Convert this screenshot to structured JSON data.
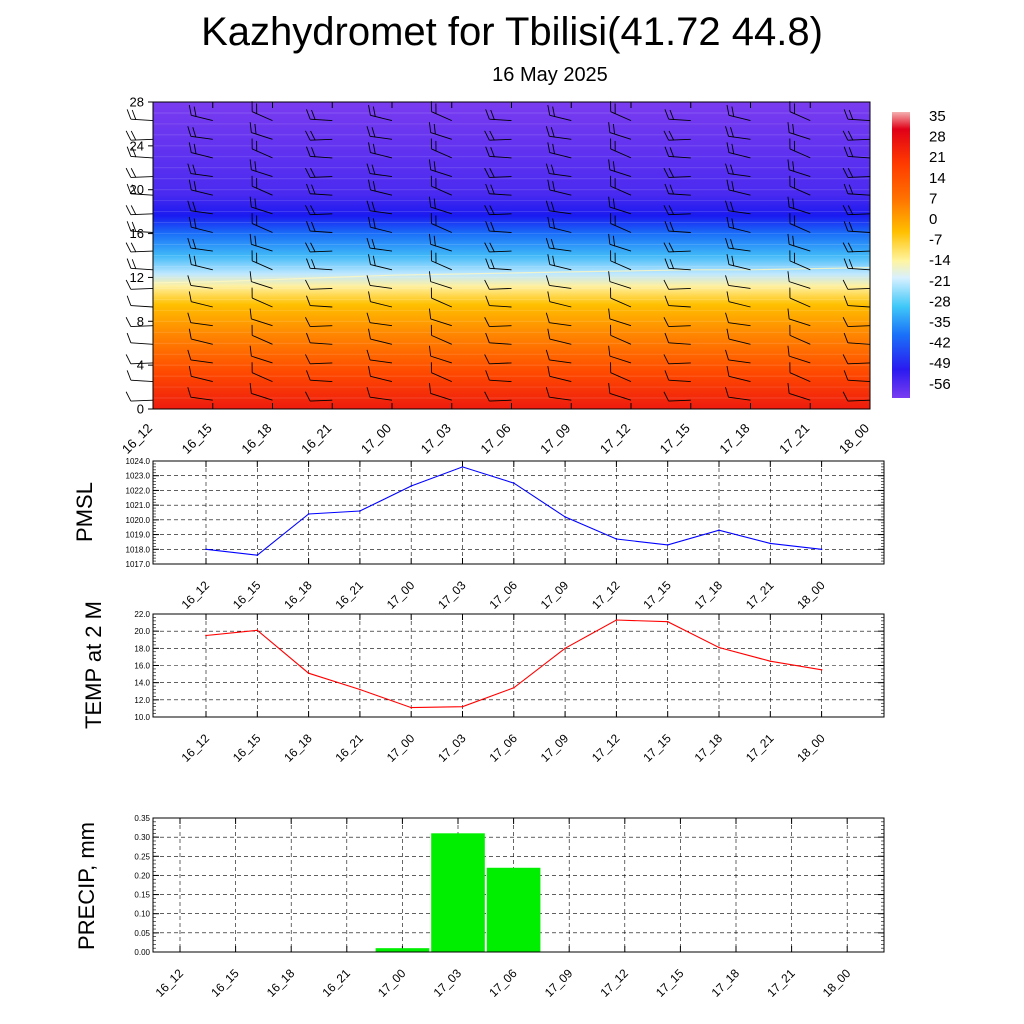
{
  "title": "Kazhydromet for Tbilisi(41.72 44.8)",
  "subtitle": "16 May 2025",
  "time_labels": [
    "16_12",
    "16_15",
    "16_18",
    "16_21",
    "17_00",
    "17_03",
    "17_06",
    "17_09",
    "17_12",
    "17_15",
    "17_18",
    "17_21",
    "18_00"
  ],
  "colors": {
    "pmsl_line": "#0000ff",
    "temp_line": "#ff0000",
    "precip_bar": "#00ee00"
  },
  "chart_data": [
    {
      "type": "heatmap",
      "x_ticks": [
        "16_12",
        "16_15",
        "16_18",
        "16_21",
        "17_00",
        "17_03",
        "17_06",
        "17_09",
        "17_12",
        "17_15",
        "17_18",
        "17_21",
        "18_00"
      ],
      "y_ticks": [
        0,
        4,
        8,
        12,
        16,
        20,
        24,
        28
      ],
      "ylim": [
        0,
        28
      ],
      "colorbar_labels": [
        "35",
        "28",
        "21",
        "14",
        "7",
        "0",
        "-7",
        "-14",
        "-21",
        "-28",
        "-35",
        "-42",
        "-49",
        "-56"
      ],
      "freezing_level": [
        11.5,
        11.6,
        11.8,
        12.0,
        12.2,
        12.3,
        12.4,
        12.5,
        12.6,
        12.7,
        12.7,
        12.8,
        12.9
      ],
      "note_fields": "temperature shading with wind barbs"
    },
    {
      "type": "line",
      "ylabel": "PMSL",
      "ylim": [
        1017,
        1024
      ],
      "y_ticks": [
        "1017.0",
        "1018.0",
        "1019.0",
        "1020.0",
        "1021.0",
        "1022.0",
        "1023.0",
        "1024.0"
      ],
      "categories": [
        "16_12",
        "16_15",
        "16_18",
        "16_21",
        "17_00",
        "17_03",
        "17_06",
        "17_09",
        "17_12",
        "17_15",
        "17_18",
        "17_21",
        "18_00"
      ],
      "values": [
        1018.0,
        1017.6,
        1020.4,
        1020.6,
        1022.3,
        1023.6,
        1022.5,
        1020.2,
        1018.7,
        1018.3,
        1019.3,
        1018.4,
        1018.0
      ]
    },
    {
      "type": "line",
      "ylabel": "TEMP at 2 M",
      "ylim": [
        10,
        22
      ],
      "y_ticks": [
        "10.0",
        "12.0",
        "14.0",
        "16.0",
        "18.0",
        "20.0",
        "22.0"
      ],
      "categories": [
        "16_12",
        "16_15",
        "16_18",
        "16_21",
        "17_00",
        "17_03",
        "17_06",
        "17_09",
        "17_12",
        "17_15",
        "17_18",
        "17_21",
        "18_00"
      ],
      "values": [
        19.5,
        20.1,
        15.1,
        13.2,
        11.1,
        11.2,
        13.4,
        18.0,
        21.3,
        21.1,
        18.1,
        16.5,
        15.5
      ]
    },
    {
      "type": "bar",
      "ylabel": "PRECIP, mm",
      "ylim": [
        0,
        0.35
      ],
      "y_ticks": [
        "0.00",
        "0.05",
        "0.10",
        "0.15",
        "0.20",
        "0.25",
        "0.30",
        "0.35"
      ],
      "categories": [
        "16_12",
        "16_15",
        "16_18",
        "16_21",
        "17_00",
        "17_03",
        "17_06",
        "17_09",
        "17_12",
        "17_15",
        "17_18",
        "17_21",
        "18_00"
      ],
      "values": [
        0,
        0,
        0,
        0,
        0.01,
        0.31,
        0.22,
        0,
        0,
        0,
        0,
        0,
        0
      ]
    }
  ]
}
